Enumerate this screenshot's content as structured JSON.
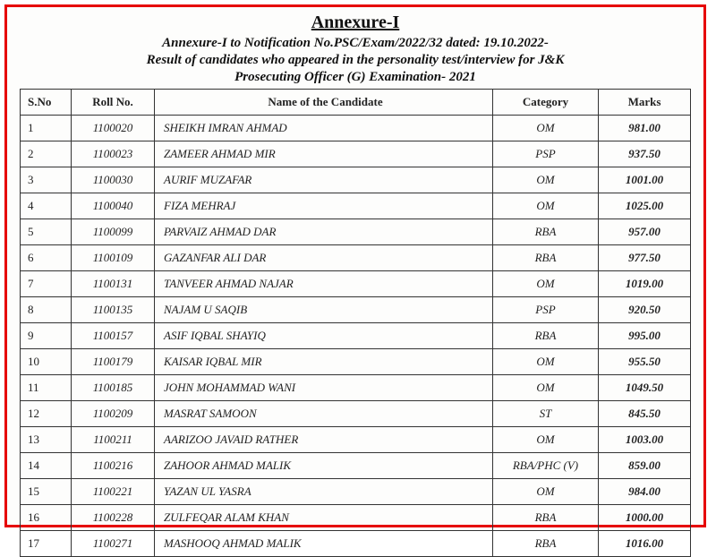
{
  "header": {
    "title": "Annexure-I",
    "subtitle_line1": "Annexure-I to Notification No.PSC/Exam/2022/32   dated: 19.10.2022-",
    "subtitle_line2": "Result of candidates who appeared in the personality test/interview for J&K",
    "subtitle_line3": "Prosecuting Officer (G) Examination- 2021"
  },
  "table": {
    "columns": [
      "S.No",
      "Roll No.",
      "Name of the Candidate",
      "Category",
      "Marks"
    ],
    "rows": [
      [
        "1",
        "1100020",
        "SHEIKH IMRAN AHMAD",
        "OM",
        "981.00"
      ],
      [
        "2",
        "1100023",
        "ZAMEER AHMAD MIR",
        "PSP",
        "937.50"
      ],
      [
        "3",
        "1100030",
        "AURIF MUZAFAR",
        "OM",
        "1001.00"
      ],
      [
        "4",
        "1100040",
        "FIZA MEHRAJ",
        "OM",
        "1025.00"
      ],
      [
        "5",
        "1100099",
        "PARVAIZ AHMAD DAR",
        "RBA",
        "957.00"
      ],
      [
        "6",
        "1100109",
        "GAZANFAR ALI DAR",
        "RBA",
        "977.50"
      ],
      [
        "7",
        "1100131",
        "TANVEER AHMAD NAJAR",
        "OM",
        "1019.00"
      ],
      [
        "8",
        "1100135",
        "NAJAM U SAQIB",
        "PSP",
        "920.50"
      ],
      [
        "9",
        "1100157",
        "ASIF IQBAL SHAYIQ",
        "RBA",
        "995.00"
      ],
      [
        "10",
        "1100179",
        "KAISAR IQBAL MIR",
        "OM",
        "955.50"
      ],
      [
        "11",
        "1100185",
        "JOHN MOHAMMAD WANI",
        "OM",
        "1049.50"
      ],
      [
        "12",
        "1100209",
        "MASRAT SAMOON",
        "ST",
        "845.50"
      ],
      [
        "13",
        "1100211",
        "AARIZOO JAVAID RATHER",
        "OM",
        "1003.00"
      ],
      [
        "14",
        "1100216",
        "ZAHOOR AHMAD MALIK",
        "RBA/PHC (V)",
        "859.00"
      ],
      [
        "15",
        "1100221",
        "YAZAN UL YASRA",
        "OM",
        "984.00"
      ],
      [
        "16",
        "1100228",
        "ZULFEQAR ALAM KHAN",
        "RBA",
        "1000.00"
      ],
      [
        "17",
        "1100271",
        "MASHOOQ AHMAD MALIK",
        "RBA",
        "1016.00"
      ]
    ]
  },
  "style": {
    "border_color": "#e60000",
    "text_color": "#111111",
    "table_border": "#333333",
    "background": "#fdfdfc"
  }
}
